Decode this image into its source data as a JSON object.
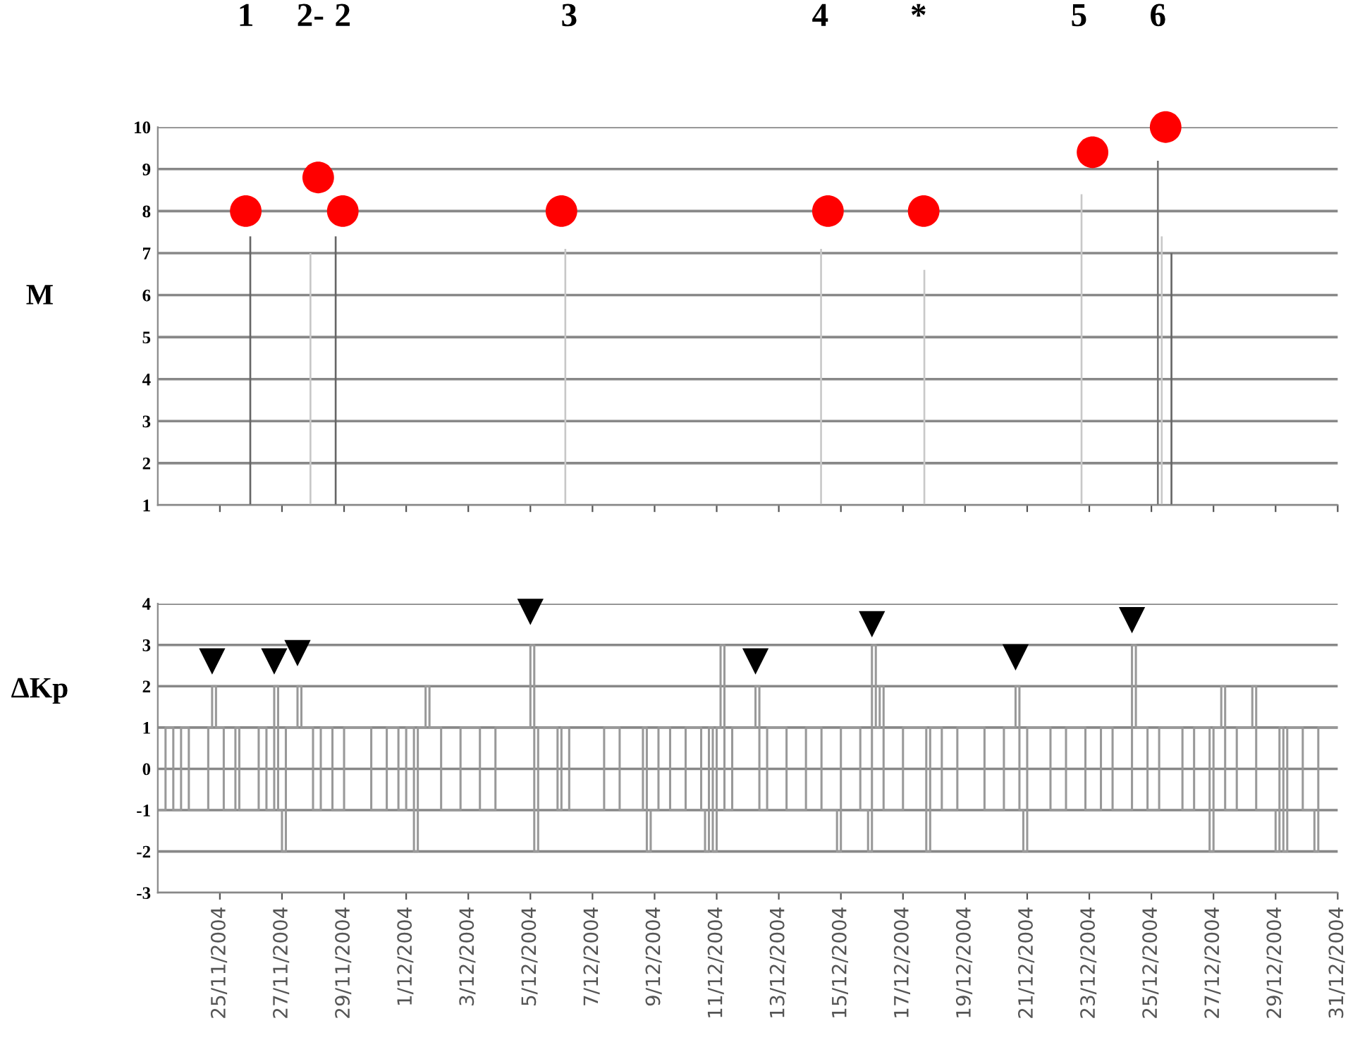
{
  "chart_data": [
    {
      "type": "bar",
      "ylabel": "M",
      "xlim": [
        "2004-11-23",
        "2004-12-31"
      ],
      "ylim": [
        1,
        10
      ],
      "yticks": [
        1,
        2,
        3,
        4,
        5,
        6,
        7,
        8,
        9,
        10
      ],
      "xticks": [
        {
          "value": "2004-11-25",
          "label": null
        },
        {
          "value": "2004-11-27",
          "label": null
        },
        {
          "value": "2004-11-29",
          "label": null
        },
        {
          "value": "2004-12-01",
          "label": null
        },
        {
          "value": "2004-12-03",
          "label": null
        },
        {
          "value": "2004-12-05",
          "label": null
        },
        {
          "value": "2004-12-07",
          "label": null
        },
        {
          "value": "2004-12-09",
          "label": null
        },
        {
          "value": "2004-12-11",
          "label": null
        },
        {
          "value": "2004-12-13",
          "label": null
        },
        {
          "value": "2004-12-15",
          "label": null
        },
        {
          "value": "2004-12-17",
          "label": null
        },
        {
          "value": "2004-12-19",
          "label": null
        },
        {
          "value": "2004-12-21",
          "label": null
        },
        {
          "value": "2004-12-23",
          "label": null
        },
        {
          "value": "2004-12-25",
          "label": null
        },
        {
          "value": "2004-12-27",
          "label": null
        },
        {
          "value": "2004-12-29",
          "label": null
        },
        {
          "value": "2004-12-31",
          "label": null
        }
      ],
      "tick_labels": "y",
      "grid": "y",
      "legend": false,
      "x2lim": [
        "2004-11-23",
        "2004-12-31"
      ],
      "x2ticks": [
        {
          "value": "2004-11-25T20:00",
          "label": "1"
        },
        {
          "value": "2004-11-27T22:00",
          "label": "2-"
        },
        {
          "value": "2004-11-28T23:00",
          "label": "2"
        },
        {
          "value": "2004-12-06T06:00",
          "label": "3"
        },
        {
          "value": "2004-12-14T08:00",
          "label": "4"
        },
        {
          "value": "2004-12-17T12:00",
          "label": "*"
        },
        {
          "value": "2004-12-22T16:00",
          "label": "5"
        },
        {
          "value": "2004-12-25T05:00",
          "label": "6"
        }
      ],
      "series": [
        {
          "x": [
            "2004-11-25T23:30",
            "2004-11-27T22:00",
            "2004-11-28T17:30",
            "2004-12-06T03:00",
            "2004-12-14T08:40",
            "2004-12-17T16:30",
            "2004-12-22T18:00",
            "2004-12-25T05:00",
            "2004-12-25T08:00",
            "2004-12-25T15:30"
          ],
          "values": [
            7.4,
            7.0,
            7.4,
            7.1,
            7.1,
            6.6,
            8.4,
            9.2,
            7.4,
            7.0
          ],
          "colors": [
            "#666666",
            "#c8c8c8",
            "#666666",
            "#c8c8c8",
            "#c8c8c8",
            "#c8c8c8",
            "#c8c8c8",
            "#777777",
            "#c8c8c8",
            "#666666"
          ]
        },
        {
          "type": "scatter",
          "marker": "circle",
          "color": "#ff0000",
          "x": [
            "2004-11-25T20:00",
            "2004-11-28T04:00",
            "2004-11-28T23:00",
            "2004-12-06T00:00",
            "2004-12-14T14:00",
            "2004-12-17T16:00",
            "2004-12-23T02:30",
            "2004-12-25T11:00"
          ],
          "values": [
            8,
            8.8,
            8,
            8,
            8,
            8,
            9.4,
            10
          ]
        }
      ]
    },
    {
      "type": "step",
      "ylabel": "ΔKp",
      "xlim": [
        "2004-11-23",
        "2004-12-31"
      ],
      "ylim": [
        -3,
        4
      ],
      "yticks": [
        -3,
        -2,
        -1,
        0,
        1,
        2,
        3,
        4
      ],
      "xticks": [
        {
          "value": "2004-11-25",
          "label": "25/11/2004"
        },
        {
          "value": "2004-11-27",
          "label": "27/11/2004"
        },
        {
          "value": "2004-11-29",
          "label": "29/11/2004"
        },
        {
          "value": "2004-12-01",
          "label": "1/12/2004"
        },
        {
          "value": "2004-12-03",
          "label": "3/12/2004"
        },
        {
          "value": "2004-12-05",
          "label": "5/12/2004"
        },
        {
          "value": "2004-12-07",
          "label": "7/12/2004"
        },
        {
          "value": "2004-12-09",
          "label": "9/12/2004"
        },
        {
          "value": "2004-12-11",
          "label": "11/12/2004"
        },
        {
          "value": "2004-12-13",
          "label": "13/12/2004"
        },
        {
          "value": "2004-12-15",
          "label": "15/12/2004"
        },
        {
          "value": "2004-12-17",
          "label": "17/12/2004"
        },
        {
          "value": "2004-12-19",
          "label": "19/12/2004"
        },
        {
          "value": "2004-12-21",
          "label": "21/12/2004"
        },
        {
          "value": "2004-12-23",
          "label": "23/12/2004"
        },
        {
          "value": "2004-12-25",
          "label": "25/12/2004"
        },
        {
          "value": "2004-12-27",
          "label": "27/12/2004"
        },
        {
          "value": "2004-12-29",
          "label": "29/12/2004"
        },
        {
          "value": "2004-12-31",
          "label": "31/12/2004"
        }
      ],
      "grid": "y",
      "legend": false,
      "series": [
        {
          "color": "#999999",
          "line_style": "solid",
          "x": [
            "2004-11-23T00:00",
            "2004-11-23T06:00",
            "2004-11-23T12:00",
            "2004-11-23T18:00",
            "2004-11-24T00:00",
            "2004-11-24T15:00",
            "2004-11-24T18:00",
            "2004-11-24T21:00",
            "2004-11-25T03:00",
            "2004-11-25T12:00",
            "2004-11-25T15:00",
            "2004-11-26T06:00",
            "2004-11-26T12:00",
            "2004-11-26T18:00",
            "2004-11-26T21:00",
            "2004-11-27T00:00",
            "2004-11-27T03:00",
            "2004-11-27T12:00",
            "2004-11-27T15:00",
            "2004-11-28T00:00",
            "2004-11-28T06:00",
            "2004-11-28T15:00",
            "2004-11-29T00:00",
            "2004-11-29T21:00",
            "2004-11-30T09:00",
            "2004-11-30T18:00",
            "2004-12-01T00:00",
            "2004-12-01T06:00",
            "2004-12-01T09:00",
            "2004-12-01T15:00",
            "2004-12-01T18:00",
            "2004-12-02T03:00",
            "2004-12-02T18:00",
            "2004-12-03T09:00",
            "2004-12-03T21:00",
            "2004-12-05T00:00",
            "2004-12-05T03:00",
            "2004-12-05T06:00",
            "2004-12-05T21:00",
            "2004-12-06T00:00",
            "2004-12-06T06:00",
            "2004-12-07T09:00",
            "2004-12-07T21:00",
            "2004-12-08T15:00",
            "2004-12-08T18:00",
            "2004-12-08T21:00",
            "2004-12-09T03:00",
            "2004-12-09T12:00",
            "2004-12-10T00:00",
            "2004-12-10T12:00",
            "2004-12-10T15:00",
            "2004-12-10T18:00",
            "2004-12-10T21:00",
            "2004-12-11T00:00",
            "2004-12-11T03:00",
            "2004-12-11T06:00",
            "2004-12-11T12:00",
            "2004-12-12T06:00",
            "2004-12-12T09:00",
            "2004-12-12T15:00",
            "2004-12-13T06:00",
            "2004-12-13T21:00",
            "2004-12-14T09:00",
            "2004-12-14T21:00",
            "2004-12-15T00:00",
            "2004-12-15T15:00",
            "2004-12-15T21:00",
            "2004-12-16T00:00",
            "2004-12-16T03:00",
            "2004-12-16T06:00",
            "2004-12-16T09:00",
            "2004-12-17T00:00",
            "2004-12-17T18:00",
            "2004-12-17T21:00",
            "2004-12-18T06:00",
            "2004-12-18T18:00",
            "2004-12-19T15:00",
            "2004-12-20T06:00",
            "2004-12-20T15:00",
            "2004-12-20T18:00",
            "2004-12-20T21:00",
            "2004-12-21T00:00",
            "2004-12-21T18:00",
            "2004-12-22T06:00",
            "2004-12-22T21:00",
            "2004-12-23T09:00",
            "2004-12-23T18:00",
            "2004-12-24T09:00",
            "2004-12-24T12:00",
            "2004-12-24T21:00",
            "2004-12-25T06:00",
            "2004-12-26T00:00",
            "2004-12-26T09:00",
            "2004-12-26T21:00",
            "2004-12-27T00:00",
            "2004-12-27T06:00",
            "2004-12-27T09:00",
            "2004-12-27T18:00",
            "2004-12-28T06:00",
            "2004-12-28T09:00",
            "2004-12-29T00:00",
            "2004-12-29T03:00",
            "2004-12-29T06:00",
            "2004-12-29T09:00",
            "2004-12-29T21:00",
            "2004-12-30T06:00",
            "2004-12-30T09:00",
            "2004-12-31T00:00"
          ],
          "values": [
            -1,
            1,
            -1,
            1,
            -1,
            1,
            2,
            1,
            -1,
            1,
            -1,
            1,
            -1,
            2,
            -1,
            -2,
            1,
            2,
            1,
            -1,
            1,
            -1,
            1,
            -1,
            1,
            -1,
            1,
            -2,
            1,
            2,
            1,
            -1,
            1,
            -1,
            1,
            3,
            -2,
            1,
            -1,
            1,
            -1,
            1,
            -1,
            1,
            -2,
            -1,
            1,
            -1,
            1,
            -1,
            -2,
            1,
            -2,
            1,
            3,
            -1,
            1,
            2,
            -1,
            1,
            -1,
            1,
            -1,
            -2,
            1,
            -1,
            -2,
            3,
            1,
            2,
            -1,
            1,
            -2,
            1,
            -1,
            1,
            -1,
            1,
            2,
            -1,
            -2,
            1,
            -1,
            1,
            -1,
            1,
            -1,
            3,
            1,
            -1,
            1,
            -1,
            1,
            -2,
            1,
            2,
            -1,
            1,
            2,
            -1,
            -2,
            1,
            -2,
            1,
            -1,
            -2,
            1,
            1
          ]
        },
        {
          "type": "scatter",
          "marker": "triangle",
          "color": "#000000",
          "x": [
            "2004-11-24T18:00",
            "2004-11-26T18:00",
            "2004-11-27T12:00",
            "2004-12-05T00:00",
            "2004-12-12T06:00",
            "2004-12-16T00:00",
            "2004-12-20T15:00",
            "2004-12-24T09:00"
          ],
          "values": [
            2.6,
            2.6,
            2.8,
            3.8,
            2.6,
            3.5,
            2.7,
            3.6
          ]
        }
      ]
    }
  ]
}
